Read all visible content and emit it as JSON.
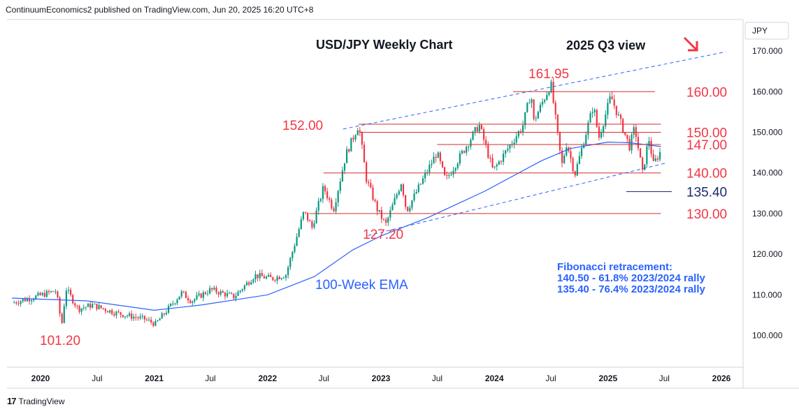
{
  "header": {
    "text": "ContinuumEconomics2 published on TradingView.com, Jun 20, 2025 16:20 UTC+8"
  },
  "footer": {
    "logo": "17",
    "brand": "TradingView"
  },
  "chart_data": {
    "type": "candlestick",
    "title": "USD/JPY Weekly Chart",
    "subtitle": "2025 Q3 view",
    "currency_label": "JPY",
    "ylim": [
      90,
      175
    ],
    "y_ticks": [
      "170.000",
      "160.000",
      "150.000",
      "140.000",
      "130.000",
      "120.000",
      "110.000",
      "100.000"
    ],
    "x_ticks": [
      {
        "label": "2020",
        "bold": true
      },
      {
        "label": "Jul",
        "bold": false
      },
      {
        "label": "2021",
        "bold": true
      },
      {
        "label": "Jul",
        "bold": false
      },
      {
        "label": "2022",
        "bold": true
      },
      {
        "label": "Jul",
        "bold": false
      },
      {
        "label": "2023",
        "bold": true
      },
      {
        "label": "Jul",
        "bold": false
      },
      {
        "label": "2024",
        "bold": true
      },
      {
        "label": "Jul",
        "bold": false
      },
      {
        "label": "2025",
        "bold": true
      },
      {
        "label": "Jul",
        "bold": false
      },
      {
        "label": "2026",
        "bold": true
      }
    ],
    "price_path": [
      [
        "2019-10-01",
        108.0
      ],
      [
        "2019-12-15",
        109.5
      ],
      [
        "2020-02-20",
        111.0
      ],
      [
        "2020-03-09",
        102.5
      ],
      [
        "2020-03-23",
        111.5
      ],
      [
        "2020-05-01",
        106.5
      ],
      [
        "2020-06-15",
        107.5
      ],
      [
        "2020-09-01",
        105.5
      ],
      [
        "2020-12-01",
        104.0
      ],
      [
        "2021-01-05",
        102.8
      ],
      [
        "2021-03-30",
        110.5
      ],
      [
        "2021-05-01",
        108.5
      ],
      [
        "2021-07-01",
        111.3
      ],
      [
        "2021-09-15",
        109.5
      ],
      [
        "2021-11-20",
        114.8
      ],
      [
        "2022-01-15",
        114.0
      ],
      [
        "2022-03-01",
        115.0
      ],
      [
        "2022-04-28",
        130.5
      ],
      [
        "2022-05-24",
        126.6
      ],
      [
        "2022-06-30",
        136.5
      ],
      [
        "2022-08-01",
        131.0
      ],
      [
        "2022-09-10",
        144.5
      ],
      [
        "2022-10-21",
        151.9
      ],
      [
        "2022-11-15",
        138.5
      ],
      [
        "2022-12-20",
        131.0
      ],
      [
        "2023-01-16",
        127.2
      ],
      [
        "2023-03-08",
        137.9
      ],
      [
        "2023-03-24",
        130.6
      ],
      [
        "2023-06-30",
        145.0
      ],
      [
        "2023-07-28",
        138.1
      ],
      [
        "2023-11-13",
        151.9
      ],
      [
        "2023-12-28",
        140.5
      ],
      [
        "2024-04-01",
        151.5
      ],
      [
        "2024-04-29",
        160.2
      ],
      [
        "2024-05-03",
        152.0
      ],
      [
        "2024-07-01",
        161.95
      ],
      [
        "2024-08-05",
        141.7
      ],
      [
        "2024-08-21",
        147.5
      ],
      [
        "2024-09-16",
        139.6
      ],
      [
        "2024-11-15",
        156.7
      ],
      [
        "2024-12-02",
        148.6
      ],
      [
        "2025-01-10",
        158.9
      ],
      [
        "2025-03-11",
        146.5
      ],
      [
        "2025-03-28",
        151.2
      ],
      [
        "2025-04-22",
        139.9
      ],
      [
        "2025-05-12",
        148.6
      ],
      [
        "2025-05-27",
        142.1
      ],
      [
        "2025-06-20",
        145.4
      ]
    ],
    "ema_path": [
      [
        "2019-10-01",
        109.2
      ],
      [
        "2020-06-01",
        108.5
      ],
      [
        "2021-01-01",
        106.2
      ],
      [
        "2021-06-01",
        107.5
      ],
      [
        "2022-01-01",
        110.0
      ],
      [
        "2022-06-01",
        114.5
      ],
      [
        "2022-10-01",
        121.0
      ],
      [
        "2023-01-01",
        124.5
      ],
      [
        "2023-06-01",
        129.0
      ],
      [
        "2023-12-01",
        135.5
      ],
      [
        "2024-06-01",
        143.0
      ],
      [
        "2024-09-01",
        146.0
      ],
      [
        "2025-01-01",
        147.6
      ],
      [
        "2025-03-15",
        147.4
      ],
      [
        "2025-06-20",
        146.5
      ]
    ],
    "upper_trendline": {
      "from": [
        "2022-09-01",
        150.8
      ],
      "to": [
        "2026-01-15",
        169.8
      ]
    },
    "lower_trendline": {
      "from": [
        "2022-11-20",
        124.6
      ],
      "to": [
        "2025-07-10",
        142.5
      ]
    },
    "levels": [
      {
        "price": 160.0,
        "label": "160.00",
        "from": "2024-03-01",
        "to": "2025-06-01"
      },
      {
        "price": 152.0,
        "label": "",
        "from": "2022-10-21",
        "to": "2025-06-20"
      },
      {
        "price": 150.0,
        "label": "150.00",
        "from": "2022-10-25",
        "to": "2025-06-20"
      },
      {
        "price": 147.0,
        "label": "147.00",
        "from": "2023-07-01",
        "to": "2025-06-20"
      },
      {
        "price": 140.0,
        "label": "140.00",
        "from": "2022-06-30",
        "to": "2025-06-20"
      },
      {
        "price": 135.4,
        "label": "135.40",
        "from": "2025-03-01",
        "to": "2025-07-25",
        "color": "#1e2a6e"
      },
      {
        "price": 130.0,
        "label": "130.00",
        "from": "2022-05-15",
        "to": "2025-06-20"
      }
    ],
    "annotations": {
      "high_label": "161.95",
      "p152_label": "152.00",
      "low_2023_label": "127.20",
      "low_2020_label": "101.20",
      "ema_label": "100-Week EMA",
      "fib_title": "Fibonacci retracement:",
      "fib_line1": "140.50 - 61.8% 2023/2024 rally",
      "fib_line2": "135.40 - 76.4% 2023/2024 rally"
    },
    "colors": {
      "up": "#089981",
      "down": "#f23645",
      "ema": "#2962ff",
      "level": "#d32f2f",
      "trend": "#2962ff"
    }
  }
}
